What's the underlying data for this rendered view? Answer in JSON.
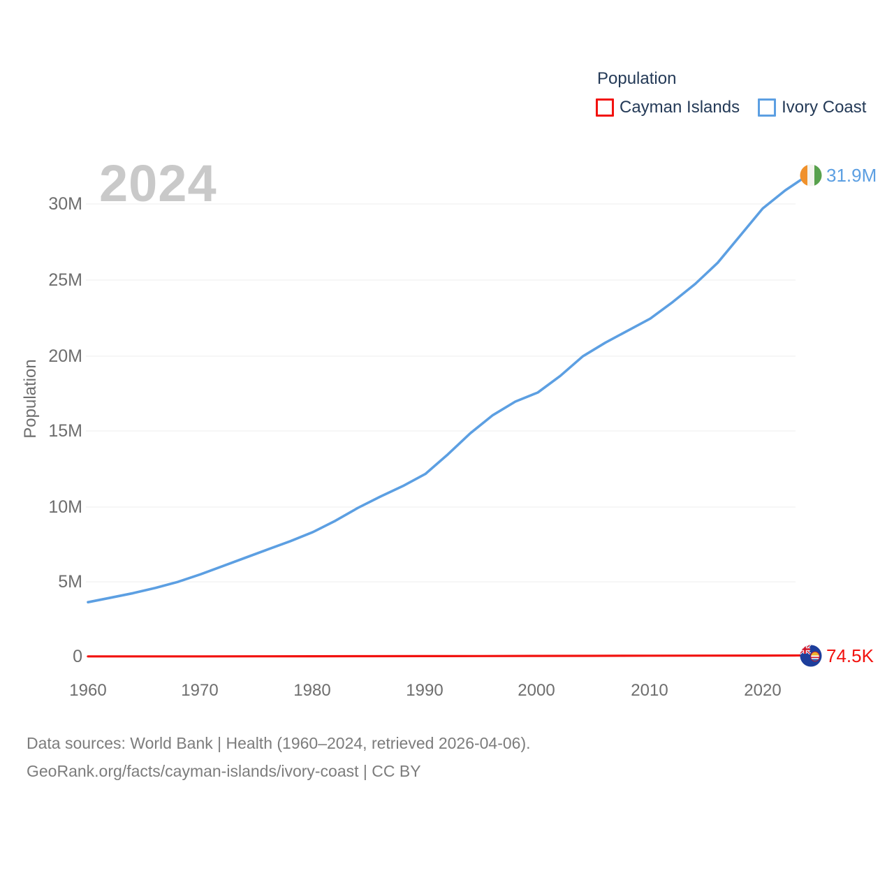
{
  "watermark_year": "2024",
  "legend": {
    "title": "Population",
    "items": [
      {
        "label": "Cayman Islands",
        "color": "#f2120f"
      },
      {
        "label": "Ivory Coast",
        "color": "#5c9fe2"
      }
    ]
  },
  "axes": {
    "y": {
      "title": "Population",
      "ticks": [
        "0",
        "5M",
        "10M",
        "15M",
        "20M",
        "25M",
        "30M"
      ]
    },
    "x": {
      "ticks": [
        "1960",
        "1970",
        "1980",
        "1990",
        "2000",
        "2010",
        "2020"
      ]
    }
  },
  "end_labels": [
    {
      "series": "Ivory Coast",
      "text": "31.9M",
      "color": "#5c9fe2"
    },
    {
      "series": "Cayman Islands",
      "text": "74.5K",
      "color": "#f2120f"
    }
  ],
  "footer": {
    "line1": "Data sources: World Bank | Health (1960–2024, retrieved 2026-04-06).",
    "line2": "GeoRank.org/facts/cayman-islands/ivory-coast | CC BY"
  },
  "chart_data": {
    "type": "line",
    "title": "Population",
    "xlabel": "",
    "ylabel": "Population",
    "x_range": [
      1960,
      2024
    ],
    "y_range": [
      0,
      32000000
    ],
    "grid": "horizontal",
    "legend_position": "top-right",
    "current_year": "2024",
    "series": [
      {
        "name": "Ivory Coast",
        "color": "#5c9fe2",
        "end_value_label": "31.9M",
        "x": [
          1960,
          1962,
          1964,
          1966,
          1968,
          1970,
          1972,
          1974,
          1976,
          1978,
          1980,
          1982,
          1984,
          1986,
          1988,
          1990,
          1992,
          1994,
          1996,
          1998,
          2000,
          2002,
          2004,
          2006,
          2008,
          2010,
          2012,
          2014,
          2016,
          2018,
          2020,
          2022,
          2024
        ],
        "values": [
          3600000,
          3900000,
          4200000,
          4550000,
          4950000,
          5450000,
          6000000,
          6550000,
          7100000,
          7650000,
          8250000,
          9000000,
          9850000,
          10600000,
          11300000,
          12100000,
          13400000,
          14800000,
          16000000,
          16900000,
          17500000,
          18600000,
          19900000,
          20800000,
          21600000,
          22400000,
          23500000,
          24700000,
          26100000,
          27900000,
          29700000,
          30900000,
          31900000
        ]
      },
      {
        "name": "Cayman Islands",
        "color": "#f2120f",
        "end_value_label": "74.5K",
        "x": [
          1960,
          1965,
          1970,
          1975,
          1980,
          1985,
          1990,
          1995,
          2000,
          2005,
          2010,
          2015,
          2020,
          2024
        ],
        "values": [
          8000,
          8900,
          10000,
          13000,
          17000,
          21000,
          26000,
          33000,
          41000,
          48000,
          55000,
          60000,
          67000,
          74500
        ]
      }
    ]
  }
}
